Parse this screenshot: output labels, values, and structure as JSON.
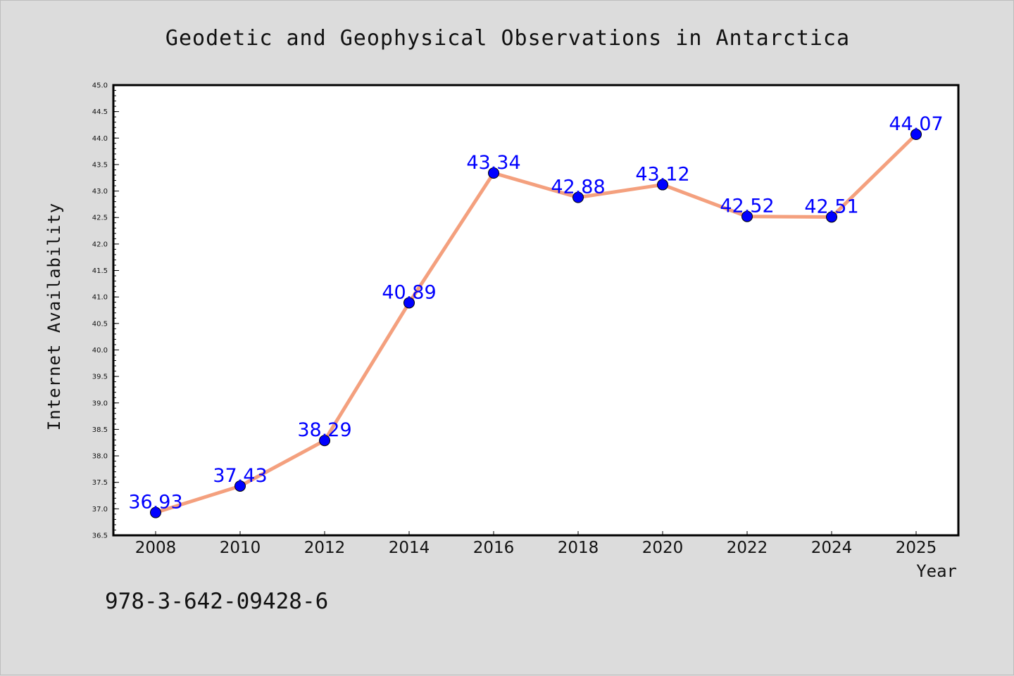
{
  "chart_data": {
    "type": "line",
    "title": "Geodetic and Geophysical Observations in Antarctica",
    "xlabel": "Year",
    "ylabel": "Internet Availability",
    "categories": [
      "2008",
      "2010",
      "2012",
      "2014",
      "2016",
      "2018",
      "2020",
      "2022",
      "2024",
      "2025"
    ],
    "series": [
      {
        "values": [
          36.93,
          37.43,
          38.29,
          40.89,
          43.34,
          42.88,
          43.12,
          42.52,
          42.51,
          44.07
        ]
      }
    ],
    "data_labels": [
      "36.93",
      "37.43",
      "38.29",
      "40.89",
      "43.34",
      "42.88",
      "43.12",
      "42.52",
      "42.51",
      "44.07"
    ],
    "ylim": [
      36.5,
      45.0
    ],
    "y_ticks": [
      "36.5",
      "37.0",
      "37.5",
      "38.0",
      "38.5",
      "39.0",
      "39.5",
      "40.0",
      "40.5",
      "41.0",
      "41.5",
      "42.0",
      "42.5",
      "43.0",
      "43.5",
      "44.0",
      "44.5",
      "45.0"
    ],
    "grid": false,
    "legend": "none",
    "colors": {
      "line": "#f4a07e",
      "marker": "#0000ff",
      "label": "#0000ff",
      "background": "#dcdcdc",
      "plot_background": "#ffffff"
    }
  },
  "footer": {
    "isbn": "978-3-642-09428-6"
  }
}
